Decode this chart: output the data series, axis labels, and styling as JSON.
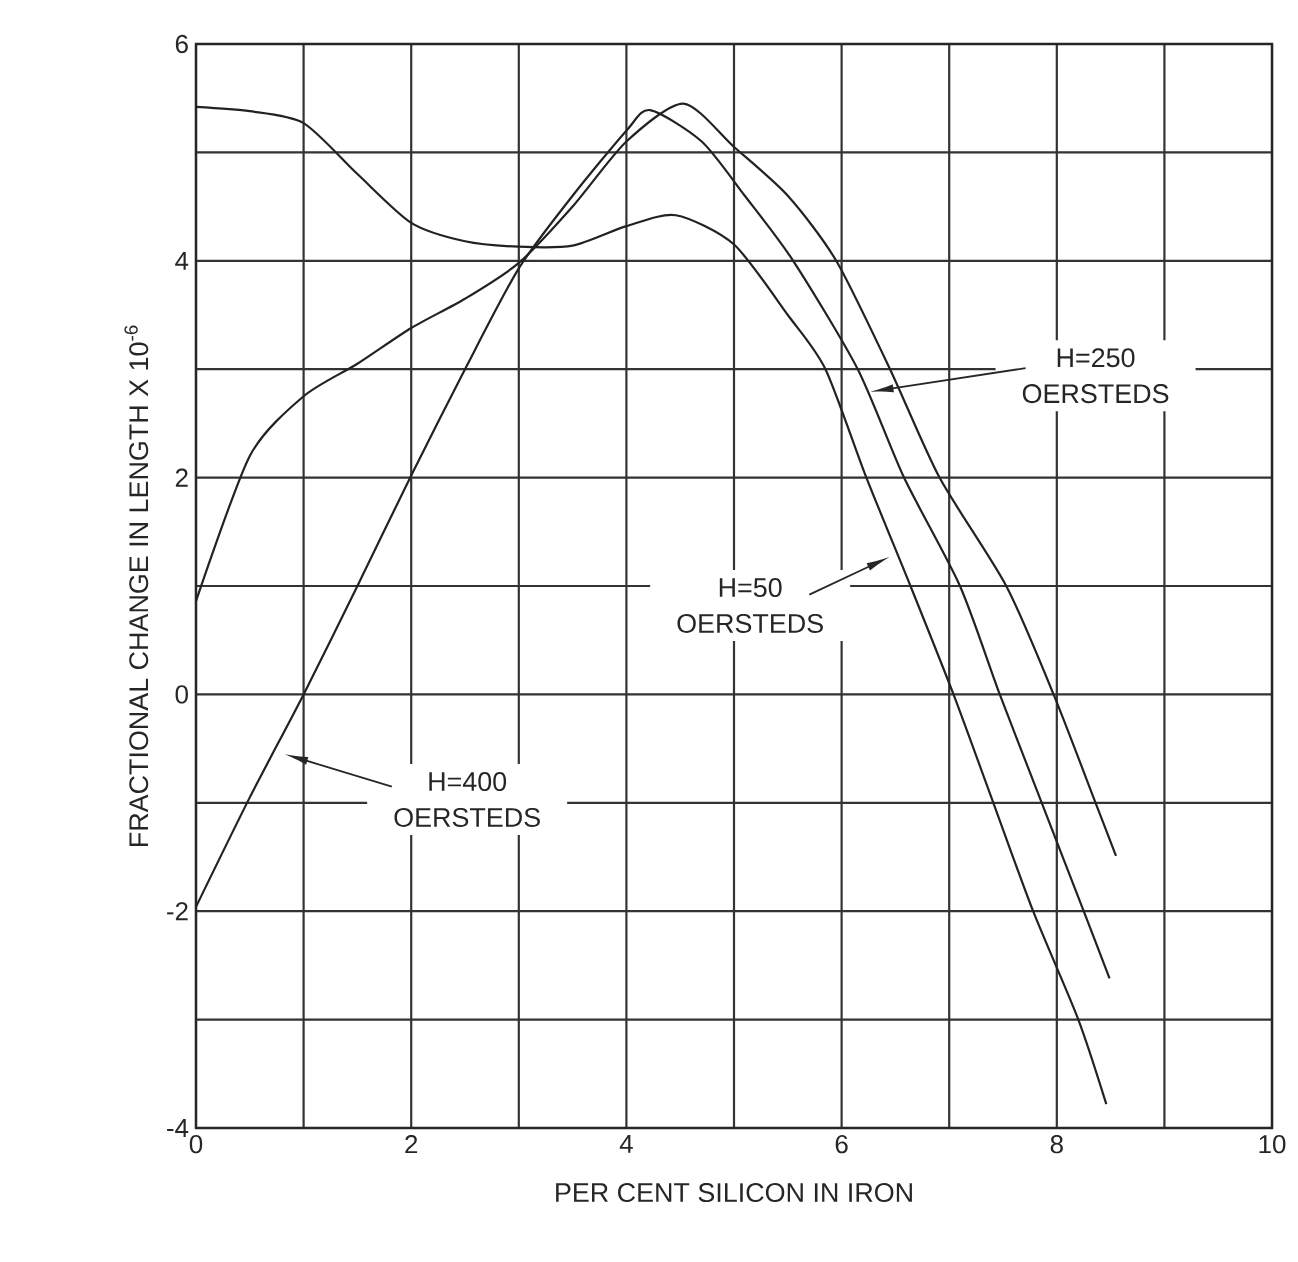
{
  "chart_data": {
    "type": "line",
    "xlabel": "PER CENT SILICON IN IRON",
    "ylabel": "FRACTIONAL CHANGE IN LENGTH X 10$^{-6}$",
    "xlim": [
      0,
      10
    ],
    "ylim": [
      -4,
      6
    ],
    "xticks": [
      0,
      2,
      4,
      6,
      8,
      10
    ],
    "yticks": [
      -4,
      -2,
      0,
      2,
      4,
      6
    ],
    "grid": true,
    "marker": "none",
    "line_style": "solid",
    "series": [
      {
        "color": "#222222",
        "x": [
          0,
          0.5,
          1,
          1.5,
          2,
          2.5,
          3,
          3.5,
          4,
          4.46,
          5,
          5.5,
          5.85,
          6.23,
          6.64,
          7.04,
          7.41,
          7.78,
          8.2,
          8.46
        ],
        "values": [
          5.42,
          5.38,
          5.27,
          4.8,
          4.35,
          4.18,
          4.13,
          4.14,
          4.32,
          4.42,
          4.15,
          3.5,
          3,
          2,
          1,
          0,
          -1,
          -2,
          -3,
          -3.78
        ]
      },
      {
        "color": "#222222",
        "x": [
          0,
          0.5,
          1,
          1.5,
          2,
          2.5,
          3,
          3.5,
          4,
          4.53,
          5,
          5.5,
          5.95,
          6.45,
          6.91,
          7.53,
          7.97,
          8.36,
          8.55
        ],
        "values": [
          0.86,
          2.2,
          2.75,
          3.05,
          3.38,
          3.65,
          3.98,
          4.5,
          5.1,
          5.45,
          5.05,
          4.6,
          4,
          3,
          2,
          1,
          0,
          -1,
          -1.49
        ]
      },
      {
        "color": "#222222",
        "x": [
          0,
          0.5,
          1,
          1.5,
          2,
          2.5,
          3,
          3.5,
          4,
          4.22,
          4.7,
          5.1,
          5.55,
          6.15,
          6.58,
          7.1,
          7.47,
          7.86,
          8.25,
          8.49
        ],
        "values": [
          -1.96,
          -0.95,
          0,
          1,
          2.02,
          3,
          3.93,
          4.6,
          5.2,
          5.39,
          5.1,
          4.6,
          4,
          3,
          2,
          1,
          0,
          -1,
          -2,
          -2.62
        ]
      }
    ],
    "annotations": [
      "H=400 OERSTEDS",
      "H=250 OERSTEDS",
      {
        "text": "H=50 OERSTEDS",
        "x": 6.45,
        "y": 1.27
      }
    ]
  }
}
